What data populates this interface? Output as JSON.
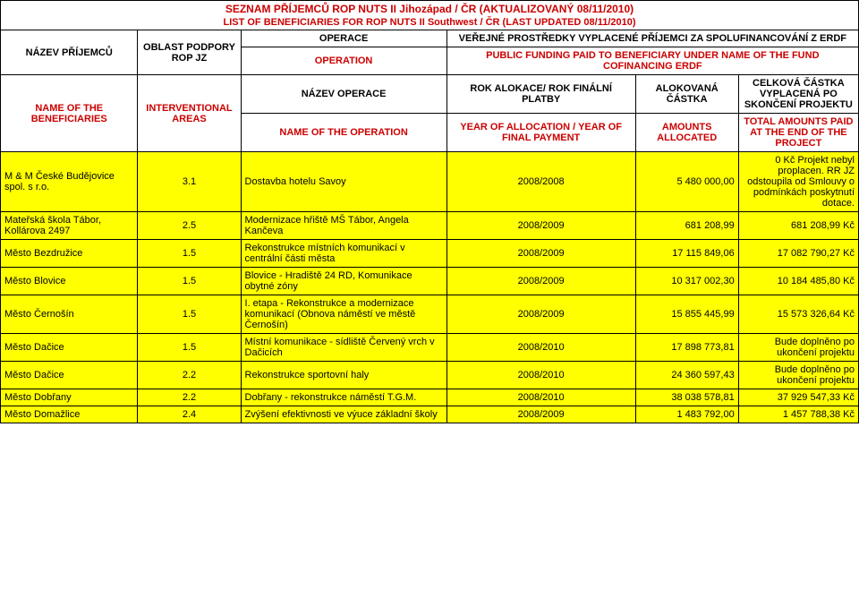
{
  "title": "SEZNAM PŘÍJEMCŮ ROP NUTS II Jihozápad / ČR (AKTUALIZOVANÝ 08/11/2010)",
  "subtitle": "LIST OF BENEFICIARIES FOR ROP NUTS II Southwest / ČR (LAST UPDATED 08/11/2010)",
  "headers": {
    "name_cz": "NÁZEV PŘÍJEMCŮ",
    "name_en": "NAME OF THE BENEFICIARIES",
    "area_cz": "OBLAST PODPORY ROP JZ",
    "area_en": "INTERVENTIONAL AREAS",
    "op_cz": "OPERACE",
    "op_en": "OPERATION",
    "public_cz": "VEŘEJNÉ PROSTŘEDKY VYPLACENÉ PŘÍJEMCI ZA SPOLUFINANCOVÁNÍ Z ERDF",
    "public_en": "PUBLIC FUNDING PAID TO BENEFICIARY UNDER NAME OF THE FUND COFINANCING ERDF",
    "opname_cz": "NÁZEV OPERACE",
    "opname_en": "NAME OF THE OPERATION",
    "year_cz": "ROK ALOKACE/ ROK FINÁLNÍ PLATBY",
    "year_en": "YEAR OF ALLOCATION / YEAR OF FINAL PAYMENT",
    "alloc_cz": "ALOKOVANÁ ČÁSTKA",
    "alloc_en": "AMOUNTS ALLOCATED",
    "total_cz": "CELKOVÁ ČÁSTKA VYPLACENÁ PO SKONČENÍ PROJEKTU",
    "total_en": "TOTAL AMOUNTS PAID AT THE END OF THE PROJECT"
  },
  "rows": [
    {
      "name": "M & M České Budějovice spol. s r.o.",
      "area": "3.1",
      "operation": "Dostavba hotelu Savoy",
      "year": "2008/2008",
      "allocated": "5 480 000,00",
      "total": "0 Kč\nProjekt nebyl proplacen. RR JZ odstoupila od Smlouvy o podmínkách poskytnutí dotace."
    },
    {
      "name": "Mateřská škola Tábor, Kollárova 2497",
      "area": "2.5",
      "operation": "Modernizace hřiště MŠ Tábor, Angela Kančeva",
      "year": "2008/2009",
      "allocated": "681 208,99",
      "total": "681 208,99 Kč"
    },
    {
      "name": "Město Bezdružice",
      "area": "1.5",
      "operation": "Rekonstrukce místních komunikací v centrální části města",
      "year": "2008/2009",
      "allocated": "17 115 849,06",
      "total": "17 082 790,27 Kč"
    },
    {
      "name": "Město Blovice",
      "area": "1.5",
      "operation": "Blovice - Hradiště 24 RD, Komunikace obytné zóny",
      "year": "2008/2009",
      "allocated": "10 317 002,30",
      "total": "10 184 485,80 Kč"
    },
    {
      "name": "Město Černošín",
      "area": "1.5",
      "operation": "I. etapa - Rekonstrukce a modernizace komunikací (Obnova náměstí ve městě Černošín)",
      "year": "2008/2009",
      "allocated": "15 855 445,99",
      "total": "15 573 326,64 Kč"
    },
    {
      "name": "Město Dačice",
      "area": "1.5",
      "operation": "Místní komunikace - sídliště Červený vrch v Dačicích",
      "year": "2008/2010",
      "allocated": "17 898 773,81",
      "total": "Bude doplněno po ukončení projektu"
    },
    {
      "name": "Město Dačice",
      "area": "2.2",
      "operation": "Rekonstrukce sportovní haly",
      "year": "2008/2010",
      "allocated": "24 360 597,43",
      "total": "Bude doplněno po ukončení projektu"
    },
    {
      "name": "Město Dobřany",
      "area": "2.2",
      "operation": "Dobřany - rekonstrukce náměstí T.G.M.",
      "year": "2008/2010",
      "allocated": "38 038 578,81",
      "total": "37 929 547,33 Kč"
    },
    {
      "name": "Město Domažlice",
      "area": "2.4",
      "operation": "Zvýšení efektivnosti ve výuce základní školy",
      "year": "2008/2009",
      "allocated": "1 483 792,00",
      "total": "1 457 788,38 Kč"
    }
  ],
  "colors": {
    "header_red": "#cc0000",
    "data_bg": "#ffff00",
    "border": "#000000"
  }
}
